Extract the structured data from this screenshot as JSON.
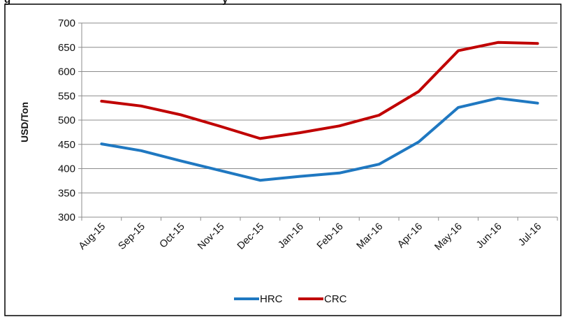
{
  "chart_data": {
    "type": "line",
    "title": "",
    "title_fragment_visible": "g",
    "title_fragment_visible_2": "y",
    "xlabel": "",
    "ylabel": "USD/Ton",
    "ylim": [
      300,
      700
    ],
    "yticks": [
      300,
      350,
      400,
      450,
      500,
      550,
      600,
      650,
      700
    ],
    "grid": "horizontal",
    "legend_position": "bottom",
    "categories": [
      "Aug-15",
      "Sep-15",
      "Oct-15",
      "Nov-15",
      "Dec-15",
      "Jan-16",
      "Feb-16",
      "Mar-16",
      "Apr-16",
      "May-16",
      "Jun-16",
      "Jul-16"
    ],
    "series": [
      {
        "name": "HRC",
        "color": "#1f78c1",
        "values": [
          451,
          437,
          416,
          396,
          376,
          384,
          391,
          409,
          455,
          526,
          545,
          535
        ]
      },
      {
        "name": "CRC",
        "color": "#c00000",
        "values": [
          539,
          529,
          511,
          487,
          462,
          474,
          488,
          510,
          559,
          643,
          660,
          658
        ]
      }
    ]
  }
}
